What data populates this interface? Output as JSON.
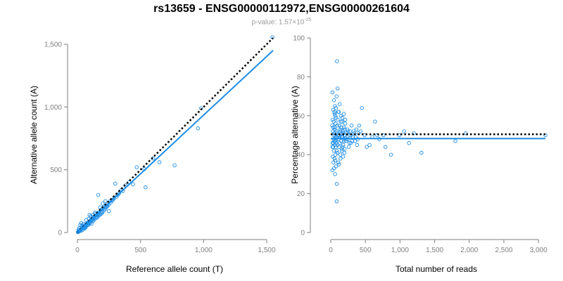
{
  "title": "rs13659 - ENSG00000112972,ENSG00000261604",
  "subtitle": {
    "prefix": "p-value: 1.57×10",
    "exponent": "-25"
  },
  "colors": {
    "points": "#1f8ee6",
    "fit": "#1f8ee6",
    "reference": "#000000",
    "axis": "#7f7f7f",
    "tick_text": "#7f7f7f",
    "label_text": "#000000"
  },
  "chart_data": [
    {
      "type": "scatter",
      "xlabel": "Reference allele count (T)",
      "ylabel": "Alternative allele count (A)",
      "xlim": [
        0,
        1550
      ],
      "ylim": [
        0,
        1550
      ],
      "xticks": [
        0,
        500,
        1000,
        1500
      ],
      "yticks": [
        0,
        500,
        1000,
        1500
      ],
      "xtick_labels": [
        "0",
        "500",
        "1,000",
        "1,500"
      ],
      "ytick_labels": [
        "0",
        "500",
        "1,000",
        "1,500"
      ],
      "grid": false,
      "points": [
        [
          1545,
          1555
        ],
        [
          980,
          990
        ],
        [
          955,
          830
        ],
        [
          770,
          535
        ],
        [
          650,
          560
        ],
        [
          600,
          590
        ],
        [
          530,
          505
        ],
        [
          540,
          360
        ],
        [
          470,
          520
        ],
        [
          440,
          385
        ],
        [
          410,
          400
        ],
        [
          380,
          375
        ],
        [
          350,
          340
        ],
        [
          320,
          300
        ],
        [
          300,
          390
        ],
        [
          290,
          270
        ],
        [
          275,
          255
        ],
        [
          260,
          250
        ],
        [
          250,
          170
        ],
        [
          240,
          230
        ],
        [
          230,
          215
        ],
        [
          220,
          200
        ],
        [
          210,
          205
        ],
        [
          200,
          190
        ],
        [
          195,
          165
        ],
        [
          185,
          180
        ],
        [
          175,
          150
        ],
        [
          170,
          160
        ],
        [
          165,
          300
        ],
        [
          160,
          155
        ],
        [
          155,
          140
        ],
        [
          150,
          130
        ],
        [
          145,
          150
        ],
        [
          140,
          135
        ],
        [
          135,
          120
        ],
        [
          130,
          115
        ],
        [
          125,
          125
        ],
        [
          120,
          105
        ],
        [
          115,
          110
        ],
        [
          110,
          95
        ],
        [
          105,
          100
        ],
        [
          100,
          90
        ],
        [
          96,
          140
        ],
        [
          92,
          85
        ],
        [
          88,
          80
        ],
        [
          84,
          78
        ],
        [
          80,
          75
        ],
        [
          76,
          70
        ],
        [
          72,
          65
        ],
        [
          68,
          62
        ],
        [
          64,
          60
        ],
        [
          60,
          55
        ],
        [
          56,
          52
        ],
        [
          52,
          48
        ],
        [
          48,
          44
        ],
        [
          45,
          42
        ],
        [
          42,
          40
        ],
        [
          39,
          36
        ],
        [
          36,
          34
        ],
        [
          33,
          30
        ],
        [
          30,
          28
        ],
        [
          27,
          25
        ],
        [
          25,
          22
        ],
        [
          22,
          20
        ],
        [
          20,
          18
        ],
        [
          18,
          16
        ],
        [
          16,
          15
        ],
        [
          14,
          13
        ],
        [
          12,
          11
        ],
        [
          10,
          9
        ],
        [
          9,
          8
        ],
        [
          7,
          6
        ],
        [
          6,
          5
        ],
        [
          5,
          4
        ],
        [
          4,
          3
        ],
        [
          22,
          60
        ],
        [
          15,
          35
        ],
        [
          35,
          55
        ],
        [
          55,
          30
        ],
        [
          65,
          40
        ],
        [
          70,
          100
        ],
        [
          85,
          60
        ],
        [
          95,
          70
        ],
        [
          105,
          130
        ],
        [
          112,
          70
        ],
        [
          118,
          90
        ],
        [
          128,
          95
        ],
        [
          138,
          110
        ],
        [
          148,
          115
        ],
        [
          158,
          120
        ],
        [
          168,
          135
        ],
        [
          178,
          140
        ],
        [
          188,
          150
        ],
        [
          198,
          160
        ],
        [
          208,
          175
        ],
        [
          218,
          185
        ],
        [
          228,
          200
        ],
        [
          238,
          210
        ],
        [
          248,
          220
        ],
        [
          265,
          240
        ],
        [
          280,
          260
        ],
        [
          310,
          285
        ],
        [
          330,
          310
        ],
        [
          360,
          330
        ],
        [
          30,
          75
        ],
        [
          40,
          20
        ],
        [
          50,
          70
        ],
        [
          60,
          45
        ],
        [
          75,
          55
        ],
        [
          90,
          110
        ],
        [
          10,
          25
        ],
        [
          26,
          12
        ],
        [
          44,
          58
        ],
        [
          58,
          38
        ],
        [
          80,
          68
        ],
        [
          100,
          80
        ],
        [
          120,
          140
        ],
        [
          140,
          160
        ],
        [
          160,
          140
        ],
        [
          180,
          200
        ],
        [
          200,
          230
        ],
        [
          222,
          250
        ]
      ],
      "fit_line": {
        "x": [
          0,
          1550
        ],
        "y": [
          0,
          1450
        ]
      },
      "reference_line": {
        "x": [
          0,
          1550
        ],
        "y": [
          0,
          1550
        ]
      }
    },
    {
      "type": "scatter",
      "xlabel": "Total number of reads",
      "ylabel": "Percentage alternative (A)",
      "xlim": [
        0,
        3100
      ],
      "ylim": [
        0,
        100
      ],
      "xticks": [
        0,
        500,
        1000,
        1500,
        2000,
        2500,
        3000
      ],
      "yticks": [
        0,
        20,
        40,
        60,
        80,
        100
      ],
      "xtick_labels": [
        "0",
        "500",
        "1,000",
        "1,500",
        "2,000",
        "2,500",
        "3,000"
      ],
      "ytick_labels": [
        "0",
        "20",
        "40",
        "60",
        "80",
        "100"
      ],
      "grid": false,
      "points": [
        [
          3100,
          50
        ],
        [
          1950,
          51
        ],
        [
          1800,
          47
        ],
        [
          1310,
          41
        ],
        [
          1200,
          51
        ],
        [
          1130,
          46
        ],
        [
          1060,
          52
        ],
        [
          990,
          50
        ],
        [
          870,
          40
        ],
        [
          790,
          44
        ],
        [
          760,
          50
        ],
        [
          700,
          48
        ],
        [
          670,
          50
        ],
        [
          640,
          57
        ],
        [
          600,
          49
        ],
        [
          560,
          45
        ],
        [
          520,
          44
        ],
        [
          490,
          50
        ],
        [
          450,
          64
        ],
        [
          430,
          52
        ],
        [
          410,
          55
        ],
        [
          390,
          48
        ],
        [
          370,
          53
        ],
        [
          350,
          47
        ],
        [
          340,
          51
        ],
        [
          320,
          49
        ],
        [
          300,
          55
        ],
        [
          290,
          46
        ],
        [
          280,
          52
        ],
        [
          270,
          50
        ],
        [
          260,
          44
        ],
        [
          250,
          48
        ],
        [
          240,
          53
        ],
        [
          230,
          51
        ],
        [
          220,
          47
        ],
        [
          210,
          56
        ],
        [
          200,
          43
        ],
        [
          195,
          50
        ],
        [
          190,
          54
        ],
        [
          185,
          48
        ],
        [
          180,
          45
        ],
        [
          175,
          52
        ],
        [
          170,
          49
        ],
        [
          165,
          57
        ],
        [
          160,
          42
        ],
        [
          155,
          51
        ],
        [
          150,
          47
        ],
        [
          145,
          60
        ],
        [
          140,
          38
        ],
        [
          135,
          53
        ],
        [
          130,
          49
        ],
        [
          125,
          55
        ],
        [
          120,
          44
        ],
        [
          115,
          62
        ],
        [
          110,
          36
        ],
        [
          105,
          50
        ],
        [
          100,
          58
        ],
        [
          95,
          41
        ],
        [
          90,
          88
        ],
        [
          88,
          25
        ],
        [
          86,
          16
        ],
        [
          84,
          70
        ],
        [
          82,
          46
        ],
        [
          80,
          52
        ],
        [
          78,
          48
        ],
        [
          76,
          34
        ],
        [
          74,
          64
        ],
        [
          72,
          44
        ],
        [
          70,
          56
        ],
        [
          68,
          40
        ],
        [
          66,
          60
        ],
        [
          64,
          50
        ],
        [
          62,
          30
        ],
        [
          60,
          65
        ],
        [
          58,
          45
        ],
        [
          56,
          54
        ],
        [
          54,
          38
        ],
        [
          52,
          62
        ],
        [
          50,
          47
        ],
        [
          48,
          33
        ],
        [
          46,
          68
        ],
        [
          44,
          42
        ],
        [
          42,
          57
        ],
        [
          40,
          50
        ],
        [
          38,
          36
        ],
        [
          36,
          63
        ],
        [
          34,
          44
        ],
        [
          32,
          52
        ],
        [
          30,
          39
        ],
        [
          28,
          58
        ],
        [
          26,
          46
        ],
        [
          24,
          72
        ],
        [
          22,
          32
        ],
        [
          20,
          55
        ],
        [
          120,
          50
        ],
        [
          130,
          46
        ],
        [
          140,
          52
        ],
        [
          150,
          54
        ],
        [
          160,
          49
        ],
        [
          170,
          44
        ],
        [
          180,
          51
        ],
        [
          190,
          47
        ],
        [
          200,
          53
        ],
        [
          110,
          48
        ],
        [
          100,
          45
        ],
        [
          90,
          51
        ],
        [
          80,
          49
        ],
        [
          70,
          47
        ],
        [
          60,
          53
        ],
        [
          50,
          51
        ],
        [
          40,
          46
        ],
        [
          210,
          50
        ],
        [
          230,
          48
        ],
        [
          250,
          52
        ],
        [
          270,
          46
        ],
        [
          290,
          50
        ],
        [
          310,
          47
        ],
        [
          330,
          52
        ],
        [
          360,
          49
        ],
        [
          380,
          45
        ],
        [
          400,
          51
        ],
        [
          95,
          55
        ],
        [
          85,
          42
        ],
        [
          75,
          59
        ],
        [
          65,
          37
        ],
        [
          55,
          61
        ],
        [
          45,
          48
        ],
        [
          35,
          54
        ],
        [
          25,
          44
        ],
        [
          118,
          35
        ],
        [
          128,
          66
        ],
        [
          98,
          74
        ],
        [
          108,
          62
        ],
        [
          138,
          40
        ],
        [
          148,
          57
        ],
        [
          158,
          43
        ],
        [
          168,
          59
        ],
        [
          178,
          39
        ],
        [
          188,
          61
        ],
        [
          198,
          41
        ],
        [
          208,
          58
        ]
      ],
      "fit_line": {
        "x": [
          0,
          3100
        ],
        "y": [
          48.3,
          48.3
        ]
      },
      "reference_line": {
        "x": [
          0,
          3100
        ],
        "y": [
          50.5,
          50.5
        ]
      }
    }
  ]
}
